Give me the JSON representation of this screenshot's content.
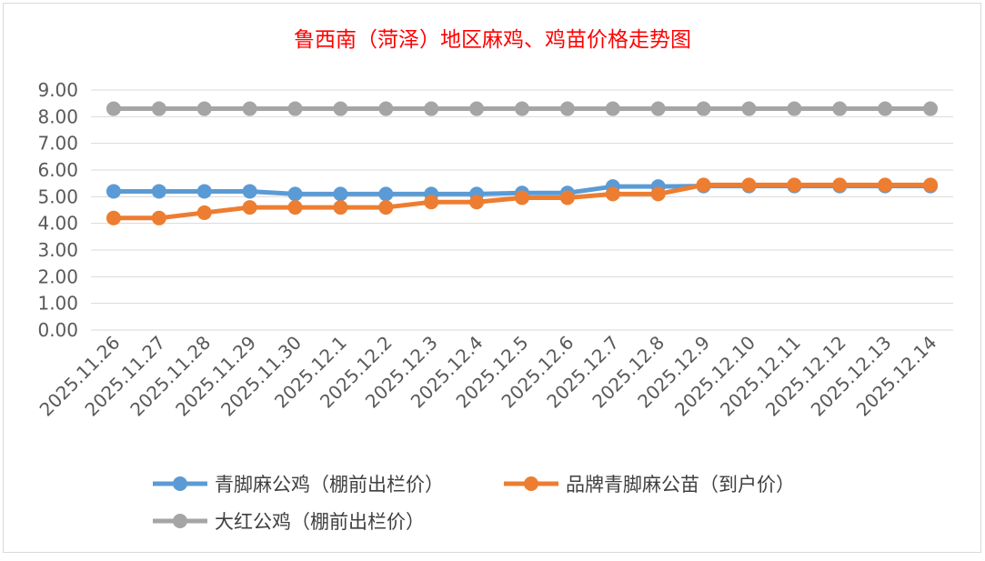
{
  "chart_data": {
    "type": "line",
    "title": "鲁西南（菏泽）地区麻鸡、鸡苗价格走势图",
    "xlabel": "",
    "ylabel": "",
    "ylim": [
      0,
      9
    ],
    "yticks": [
      "0.00",
      "1.00",
      "2.00",
      "3.00",
      "4.00",
      "5.00",
      "6.00",
      "7.00",
      "8.00",
      "9.00"
    ],
    "grid": true,
    "legend_position": "bottom",
    "categories": [
      "2025.11.26",
      "2025.11.27",
      "2025.11.28",
      "2025.11.29",
      "2025.11.30",
      "2025.12.1",
      "2025.12.2",
      "2025.12.3",
      "2025.12.4",
      "2025.12.5",
      "2025.12.6",
      "2025.12.7",
      "2025.12.8",
      "2025.12.9",
      "2025.12.10",
      "2025.12.11",
      "2025.12.12",
      "2025.12.13",
      "2025.12.14"
    ],
    "series": [
      {
        "name": "青脚麻公鸡（棚前出栏价）",
        "color": "#5b9bd5",
        "values": [
          5.2,
          5.2,
          5.2,
          5.2,
          5.1,
          5.1,
          5.1,
          5.1,
          5.1,
          5.14,
          5.14,
          5.38,
          5.38,
          5.4,
          5.4,
          5.4,
          5.4,
          5.4,
          5.4
        ]
      },
      {
        "name": "品牌青脚麻公苗（到户价）",
        "color": "#ed7d31",
        "values": [
          4.2,
          4.2,
          4.4,
          4.6,
          4.6,
          4.6,
          4.6,
          4.8,
          4.8,
          4.96,
          4.96,
          5.1,
          5.1,
          5.44,
          5.44,
          5.44,
          5.44,
          5.44,
          5.44
        ]
      },
      {
        "name": "大红公鸡（棚前出栏价）",
        "color": "#a5a5a5",
        "values": [
          8.3,
          8.3,
          8.3,
          8.3,
          8.3,
          8.3,
          8.3,
          8.3,
          8.3,
          8.3,
          8.3,
          8.3,
          8.3,
          8.3,
          8.3,
          8.3,
          8.3,
          8.3,
          8.3
        ]
      }
    ]
  }
}
